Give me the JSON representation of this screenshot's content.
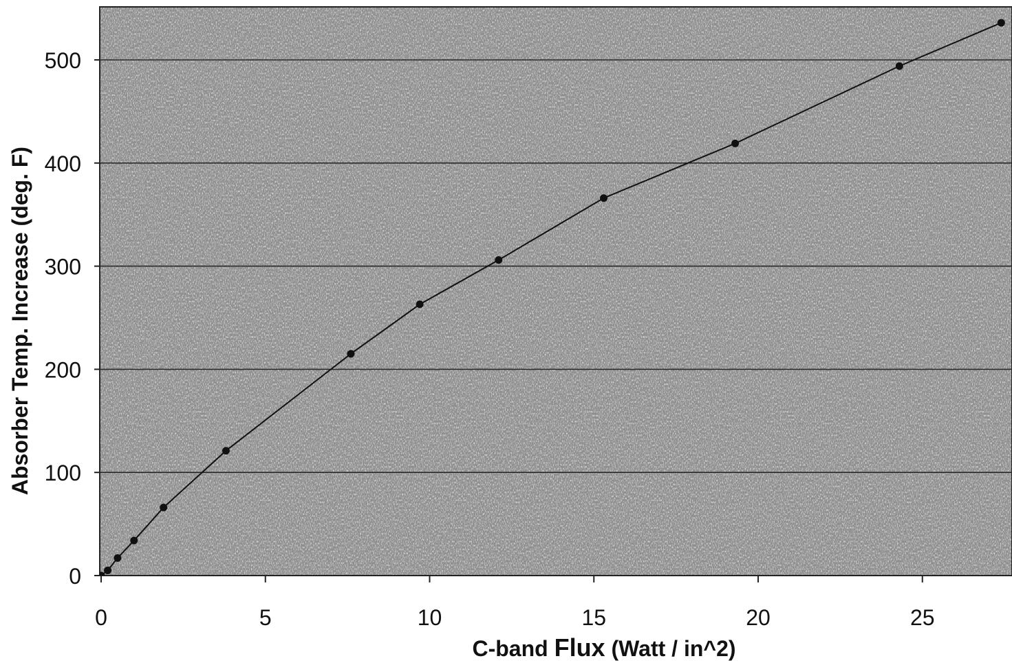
{
  "chart_data": {
    "type": "scatter",
    "xlabel_prefix": "C-band ",
    "xlabel_bold": "Flux",
    "xlabel_suffix": " (Watt / in^2)",
    "ylabel": "Absorber Temp. Increase (deg. F)",
    "xlim": [
      0,
      27.5
    ],
    "ylim": [
      0,
      550
    ],
    "xticks": [
      0,
      5,
      10,
      15,
      20,
      25
    ],
    "yticks": [
      0,
      100,
      200,
      300,
      400,
      500
    ],
    "grid": "horizontal",
    "legend": "none",
    "colors": {
      "plot_background": "#8d8d8d",
      "line": "#111111",
      "marker": "#111111",
      "gridline": "#2a2a2a",
      "text": "#111111"
    },
    "series": [
      {
        "x": [
          0,
          0.2,
          0.5,
          1.0,
          1.9,
          3.8,
          7.6,
          9.7,
          12.1,
          15.3,
          19.3,
          24.3,
          27.4
        ],
        "y": [
          0,
          5,
          17,
          34,
          66,
          121,
          215,
          263,
          306,
          366,
          419,
          494,
          536
        ],
        "marker": "circle",
        "line": "solid"
      }
    ]
  }
}
